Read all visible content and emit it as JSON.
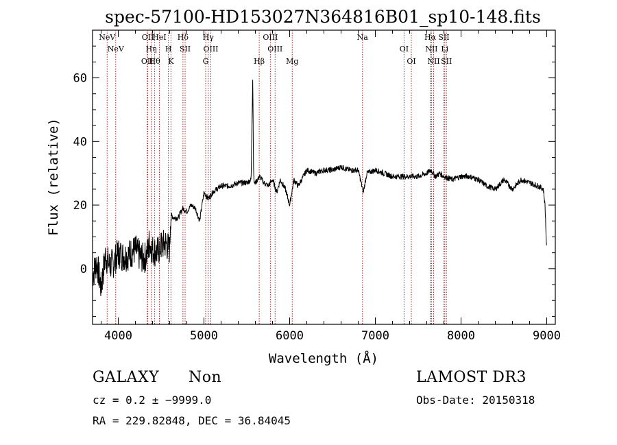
{
  "chart_data": {
    "type": "line",
    "title": "spec-57100-HD153027N364816B01_sp10-148.fits",
    "xlabel": "Wavelength (Å)",
    "ylabel": "Flux (relative)",
    "xlim": [
      3700,
      9100
    ],
    "ylim": [
      -17.5,
      75
    ],
    "xticks": [
      4000,
      5000,
      6000,
      7000,
      8000,
      9000
    ],
    "yticks": [
      0,
      20,
      40,
      60
    ],
    "grid": false,
    "line_color": "#000000",
    "marker_color": "#b22222",
    "series": [
      {
        "x": [
          3700,
          3750,
          3800,
          3850,
          3900,
          3950,
          4000,
          4050,
          4100,
          4150,
          4200,
          4250,
          4300,
          4340,
          4360,
          4400,
          4450,
          4500,
          4550,
          4600,
          4610,
          4650,
          4700,
          4750,
          4800,
          4850,
          4900,
          4950,
          5000,
          5050,
          5100,
          5150,
          5200,
          5300,
          5400,
          5500,
          5550,
          5560,
          5570,
          5577,
          5585,
          5600,
          5650,
          5700,
          5750,
          5800,
          5850,
          5890,
          5950,
          6000,
          6050,
          6100,
          6200,
          6300,
          6400,
          6500,
          6600,
          6700,
          6800,
          6860,
          6900,
          7000,
          7100,
          7200,
          7300,
          7400,
          7500,
          7600,
          7650,
          7700,
          7750,
          7800,
          7900,
          8000,
          8100,
          8200,
          8300,
          8400,
          8500,
          8600,
          8700,
          8800,
          8900,
          8960,
          8980,
          9000
        ],
        "y": [
          -2,
          2,
          -6,
          4,
          1,
          2,
          5,
          4,
          4,
          5,
          6,
          4,
          3,
          5,
          8,
          6,
          5,
          7,
          8,
          6,
          17,
          16,
          16,
          19,
          18,
          20,
          19,
          15,
          24,
          22,
          24,
          25,
          26,
          26,
          27,
          27,
          28,
          45,
          61,
          33,
          27,
          27,
          29,
          27,
          26,
          28,
          24,
          28,
          25,
          20,
          28,
          26,
          31,
          30,
          31,
          31,
          32,
          31,
          31,
          24,
          30,
          31,
          30,
          29,
          29,
          29,
          29,
          30,
          31,
          29,
          30,
          29,
          28,
          29,
          29,
          28,
          26,
          25,
          28,
          25,
          28,
          27,
          26,
          25,
          20,
          5
        ]
      }
    ],
    "line_markers": [
      {
        "label": "NeV",
        "wavelength": 3870
      },
      {
        "label": "NeV",
        "wavelength": 3970
      },
      {
        "label": "OII",
        "wavelength": 4338
      },
      {
        "label": "OII",
        "wavelength": 4345
      },
      {
        "label": "Hη",
        "wavelength": 4385
      },
      {
        "label": "Hθ",
        "wavelength": 4425
      },
      {
        "label": "HeI",
        "wavelength": 4480
      },
      {
        "label": "H",
        "wavelength": 4585
      },
      {
        "label": "K",
        "wavelength": 4615
      },
      {
        "label": "Hδ",
        "wavelength": 4755
      },
      {
        "label": "SII",
        "wavelength": 4780
      },
      {
        "label": "G",
        "wavelength": 5020
      },
      {
        "label": "Hγ",
        "wavelength": 5050
      },
      {
        "label": "OIII",
        "wavelength": 5080
      },
      {
        "label": "Hβ",
        "wavelength": 5645
      },
      {
        "label": "OIII",
        "wavelength": 5775
      },
      {
        "label": "OIII",
        "wavelength": 5830
      },
      {
        "label": "Mg",
        "wavelength": 6030
      },
      {
        "label": "Na",
        "wavelength": 6850
      },
      {
        "label": "OI",
        "wavelength": 7335
      },
      {
        "label": "OI",
        "wavelength": 7420
      },
      {
        "label": "Hα",
        "wavelength": 7640
      },
      {
        "label": "NII",
        "wavelength": 7655
      },
      {
        "label": "NII",
        "wavelength": 7680
      },
      {
        "label": "SII",
        "wavelength": 7800
      },
      {
        "label": "Li",
        "wavelength": 7810
      },
      {
        "label": "SII",
        "wavelength": 7830
      }
    ]
  },
  "info": {
    "object_class": "GALAXY",
    "subclass": "Non",
    "survey": "LAMOST DR3",
    "redshift": "cz = 0.2 ± −9999.0",
    "obs_date": "Obs-Date: 20150318",
    "coords": "RA = 229.82848, DEC =  36.84045"
  }
}
